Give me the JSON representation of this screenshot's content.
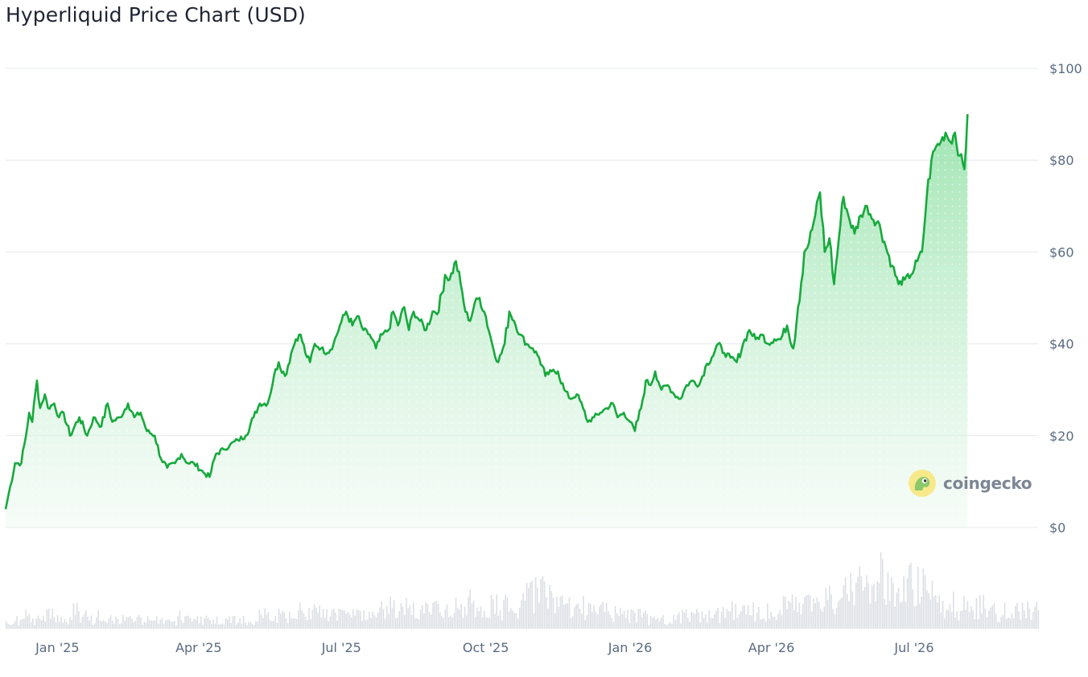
{
  "brand": {
    "watermark": "coingecko",
    "accent": "#17a93d",
    "fill": "#cdefd6",
    "volume_color": "#dcdfe4"
  },
  "chart_data": {
    "type": "line",
    "title": "Hyperliquid Price Chart (USD)",
    "xlabel": "",
    "ylabel": "",
    "currency": "USD",
    "ylim": [
      0,
      100
    ],
    "yticks": [
      {
        "value": 0,
        "label": "$0"
      },
      {
        "value": 20,
        "label": "$20"
      },
      {
        "value": 40,
        "label": "$40"
      },
      {
        "value": 60,
        "label": "$60"
      },
      {
        "value": 80,
        "label": "$80"
      },
      {
        "value": 100,
        "label": "$100"
      }
    ],
    "xlim": [
      "2024-11-29",
      "2026-09-18"
    ],
    "xticks": [
      {
        "date": "2025-01-01",
        "label": "Jan '25"
      },
      {
        "date": "2025-04-01",
        "label": "Apr '25"
      },
      {
        "date": "2025-07-01",
        "label": "Jul '25"
      },
      {
        "date": "2025-10-01",
        "label": "Oct '25"
      },
      {
        "date": "2026-01-01",
        "label": "Jan '26"
      },
      {
        "date": "2026-04-01",
        "label": "Apr '26"
      },
      {
        "date": "2026-07-01",
        "label": "Jul '26"
      }
    ],
    "grid": true,
    "legend": "none",
    "series": [
      {
        "points": [
          [
            "2024-11-29",
            4
          ],
          [
            "2024-12-02",
            9
          ],
          [
            "2024-12-05",
            14
          ],
          [
            "2024-12-09",
            14
          ],
          [
            "2024-12-12",
            20
          ],
          [
            "2024-12-14",
            25
          ],
          [
            "2024-12-16",
            23
          ],
          [
            "2024-12-19",
            32
          ],
          [
            "2024-12-21",
            26
          ],
          [
            "2024-12-24",
            29
          ],
          [
            "2024-12-26",
            26
          ],
          [
            "2024-12-30",
            27
          ],
          [
            "2025-01-02",
            24
          ],
          [
            "2025-01-05",
            25
          ],
          [
            "2025-01-09",
            20
          ],
          [
            "2025-01-15",
            24
          ],
          [
            "2025-01-20",
            20
          ],
          [
            "2025-01-24",
            24
          ],
          [
            "2025-01-29",
            22
          ],
          [
            "2025-02-02",
            27
          ],
          [
            "2025-02-05",
            23
          ],
          [
            "2025-02-10",
            24
          ],
          [
            "2025-02-15",
            27
          ],
          [
            "2025-02-19",
            24
          ],
          [
            "2025-02-23",
            25
          ],
          [
            "2025-02-27",
            21
          ],
          [
            "2025-03-04",
            20
          ],
          [
            "2025-03-08",
            15
          ],
          [
            "2025-03-12",
            13
          ],
          [
            "2025-03-17",
            14
          ],
          [
            "2025-03-21",
            16
          ],
          [
            "2025-03-25",
            14
          ],
          [
            "2025-03-29",
            14
          ],
          [
            "2025-04-04",
            12
          ],
          [
            "2025-04-08",
            11
          ],
          [
            "2025-04-12",
            16
          ],
          [
            "2025-04-17",
            17
          ],
          [
            "2025-04-21",
            18
          ],
          [
            "2025-04-26",
            19
          ],
          [
            "2025-05-01",
            20
          ],
          [
            "2025-05-06",
            24
          ],
          [
            "2025-05-10",
            27
          ],
          [
            "2025-05-15",
            27
          ],
          [
            "2025-05-19",
            33
          ],
          [
            "2025-05-22",
            36
          ],
          [
            "2025-05-26",
            33
          ],
          [
            "2025-05-30",
            38
          ],
          [
            "2025-06-02",
            41
          ],
          [
            "2025-06-05",
            42
          ],
          [
            "2025-06-08",
            38
          ],
          [
            "2025-06-11",
            36
          ],
          [
            "2025-06-14",
            40
          ],
          [
            "2025-06-18",
            39
          ],
          [
            "2025-06-22",
            38
          ],
          [
            "2025-06-26",
            40
          ],
          [
            "2025-06-30",
            44
          ],
          [
            "2025-07-04",
            47
          ],
          [
            "2025-07-08",
            44
          ],
          [
            "2025-07-11",
            46
          ],
          [
            "2025-07-15",
            43
          ],
          [
            "2025-07-19",
            42
          ],
          [
            "2025-07-23",
            39
          ],
          [
            "2025-07-27",
            42
          ],
          [
            "2025-07-31",
            43
          ],
          [
            "2025-08-03",
            47
          ],
          [
            "2025-08-06",
            44
          ],
          [
            "2025-08-10",
            48
          ],
          [
            "2025-08-13",
            43
          ],
          [
            "2025-08-16",
            47
          ],
          [
            "2025-08-20",
            45
          ],
          [
            "2025-08-24",
            43
          ],
          [
            "2025-08-28",
            47
          ],
          [
            "2025-09-01",
            47
          ],
          [
            "2025-09-05",
            55
          ],
          [
            "2025-09-08",
            54
          ],
          [
            "2025-09-12",
            58
          ],
          [
            "2025-09-15",
            53
          ],
          [
            "2025-09-18",
            47
          ],
          [
            "2025-09-21",
            45
          ],
          [
            "2025-09-24",
            49
          ],
          [
            "2025-09-27",
            50
          ],
          [
            "2025-10-01",
            46
          ],
          [
            "2025-10-05",
            40
          ],
          [
            "2025-10-09",
            36
          ],
          [
            "2025-10-13",
            40
          ],
          [
            "2025-10-16",
            47
          ],
          [
            "2025-10-19",
            45
          ],
          [
            "2025-10-23",
            42
          ],
          [
            "2025-10-27",
            40
          ],
          [
            "2025-10-31",
            39
          ],
          [
            "2025-11-04",
            37
          ],
          [
            "2025-11-08",
            33
          ],
          [
            "2025-11-12",
            34
          ],
          [
            "2025-11-16",
            34
          ],
          [
            "2025-11-20",
            30
          ],
          [
            "2025-11-24",
            28
          ],
          [
            "2025-11-28",
            29
          ],
          [
            "2025-12-02",
            26
          ],
          [
            "2025-12-05",
            23
          ],
          [
            "2025-12-09",
            24
          ],
          [
            "2025-12-13",
            25
          ],
          [
            "2025-12-17",
            26
          ],
          [
            "2025-12-21",
            27
          ],
          [
            "2025-12-24",
            24
          ],
          [
            "2025-12-28",
            25
          ],
          [
            "2026-01-01",
            23
          ],
          [
            "2026-01-04",
            21
          ],
          [
            "2026-01-08",
            26
          ],
          [
            "2026-01-11",
            32
          ],
          [
            "2026-01-14",
            31
          ],
          [
            "2026-01-17",
            34
          ],
          [
            "2026-01-21",
            30
          ],
          [
            "2026-01-25",
            31
          ],
          [
            "2026-01-29",
            29
          ],
          [
            "2026-02-02",
            28
          ],
          [
            "2026-02-06",
            31
          ],
          [
            "2026-02-10",
            32
          ],
          [
            "2026-02-14",
            31
          ],
          [
            "2026-02-18",
            35
          ],
          [
            "2026-02-22",
            37
          ],
          [
            "2026-02-26",
            40
          ],
          [
            "2026-03-02",
            38
          ],
          [
            "2026-03-06",
            37
          ],
          [
            "2026-03-10",
            36
          ],
          [
            "2026-03-14",
            40
          ],
          [
            "2026-03-18",
            43
          ],
          [
            "2026-03-22",
            41
          ],
          [
            "2026-03-26",
            42
          ],
          [
            "2026-03-30",
            40
          ],
          [
            "2026-04-03",
            41
          ],
          [
            "2026-04-07",
            41
          ],
          [
            "2026-04-11",
            44
          ],
          [
            "2026-04-15",
            39
          ],
          [
            "2026-04-18",
            48
          ],
          [
            "2026-04-22",
            60
          ],
          [
            "2026-04-25",
            62
          ],
          [
            "2026-04-29",
            68
          ],
          [
            "2026-05-02",
            73
          ],
          [
            "2026-05-05",
            60
          ],
          [
            "2026-05-08",
            63
          ],
          [
            "2026-05-11",
            53
          ],
          [
            "2026-05-14",
            63
          ],
          [
            "2026-05-17",
            72
          ],
          [
            "2026-05-20",
            68
          ],
          [
            "2026-05-24",
            64
          ],
          [
            "2026-05-28",
            68
          ],
          [
            "2026-06-01",
            70
          ],
          [
            "2026-06-05",
            67
          ],
          [
            "2026-06-09",
            66
          ],
          [
            "2026-06-13",
            61
          ],
          [
            "2026-06-17",
            57
          ],
          [
            "2026-06-21",
            53
          ],
          [
            "2026-06-25",
            54
          ],
          [
            "2026-06-29",
            55
          ],
          [
            "2026-07-03",
            58
          ],
          [
            "2026-07-06",
            60
          ],
          [
            "2026-07-09",
            72
          ],
          [
            "2026-07-12",
            80
          ],
          [
            "2026-07-15",
            83
          ],
          [
            "2026-07-18",
            84
          ],
          [
            "2026-07-21",
            86
          ],
          [
            "2026-07-24",
            84
          ],
          [
            "2026-07-27",
            86
          ],
          [
            "2026-07-30",
            81
          ],
          [
            "2026-08-02",
            78
          ],
          [
            "2026-08-04",
            90
          ]
        ]
      }
    ],
    "volume": {
      "description_hidden": false,
      "values": [
        2,
        2,
        3,
        2,
        3,
        3,
        2,
        2,
        4,
        3,
        2,
        3,
        2,
        2,
        3,
        2,
        2,
        2,
        2,
        2,
        2,
        3,
        2,
        2,
        2,
        2,
        2,
        2,
        2,
        2,
        2,
        3,
        3,
        3,
        3,
        3,
        4,
        4,
        4,
        3,
        3,
        3,
        3,
        3,
        3,
        4,
        4,
        5,
        5,
        5,
        4,
        4,
        5,
        5,
        4,
        5,
        5,
        6,
        5,
        5,
        5,
        5,
        5,
        6,
        7,
        8,
        7,
        6,
        6,
        5,
        5,
        4,
        4,
        4,
        4,
        3,
        3,
        3,
        3,
        2,
        2,
        2,
        3,
        3,
        3,
        3,
        3,
        3,
        4,
        4,
        4,
        4,
        4,
        4,
        4,
        5,
        5,
        5,
        5,
        5,
        6,
        8,
        10,
        12,
        10,
        8,
        9,
        12,
        10,
        8,
        9,
        10,
        9,
        8,
        7,
        6,
        6,
        5,
        5,
        5,
        5,
        4,
        4,
        4,
        4,
        4,
        4
      ]
    }
  }
}
